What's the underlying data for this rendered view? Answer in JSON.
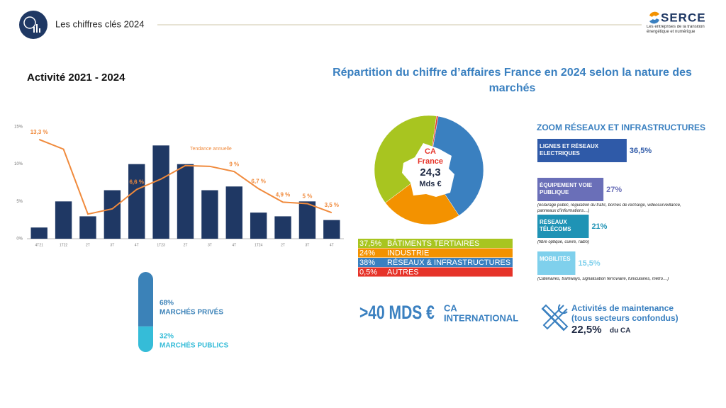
{
  "header": {
    "title": "Les chiffres clés 2024",
    "logo": "SERCE",
    "logo_subtitle": "Les entreprises de la transition énergétique et numérique"
  },
  "chart_data": [
    {
      "type": "bar",
      "title": "Activité 2021 - 2024",
      "categories": [
        "4T21",
        "1T22",
        "2T",
        "3T",
        "4T",
        "1T23",
        "2T",
        "3T",
        "4T",
        "1T24",
        "2T",
        "3T",
        "4T"
      ],
      "values": [
        1.5,
        5,
        3,
        6.5,
        10,
        12.5,
        10,
        6.5,
        7,
        3.5,
        3,
        5,
        2.5
      ],
      "color": "#1f3864",
      "line": {
        "name": "Tendance annuelle",
        "color": "#f08a3c",
        "values": [
          13.3,
          12,
          3.3,
          4,
          6.6,
          8,
          9.8,
          9.7,
          9,
          6.7,
          4.9,
          4.7,
          3.5
        ],
        "value_labels": [
          "13,3 %",
          null,
          null,
          null,
          "6,6 %",
          null,
          null,
          null,
          "9 %",
          "6,7 %",
          "4,9 %",
          "5 %",
          "3,5 %"
        ]
      },
      "ylim": [
        0,
        15
      ],
      "yticks": [
        {
          "value": 0,
          "label": "0%"
        },
        {
          "value": 5,
          "label": "5%"
        },
        {
          "value": 10,
          "label": "10%"
        },
        {
          "value": 15,
          "label": "15%"
        }
      ],
      "grid": false
    },
    {
      "type": "pie",
      "title": "Répartition du chiffre d’affaires France en 2024 selon la nature des marchés",
      "center_label": [
        "CA",
        "France",
        "24,3",
        "Mds €"
      ],
      "categories": [
        "BÂTIMENTS TERTIAIRES",
        "INDUSTRIE",
        "RÉSEAUX & INFRASTRUCTURES",
        "AUTRES"
      ],
      "values": [
        37.5,
        24,
        38,
        0.5
      ],
      "value_labels": [
        "37,5%",
        "24%",
        "38%",
        "0,5%"
      ],
      "colors": [
        "#a8c520",
        "#f39200",
        "#3a80c0",
        "#e63329"
      ]
    },
    {
      "type": "bar",
      "orientation": "horizontal",
      "title": "ZOOM RÉSEAUX ET  INFRASTRUCTURES",
      "categories": [
        "LIGNES ET RÉSEAUX ELECTRIQUES",
        "ÉQUIPEMENT VOIE PUBLIQUE",
        "RÉSEAUX TÉLÉCOMS",
        "MOBILITÉS"
      ],
      "values": [
        36.5,
        27,
        21,
        15.5
      ],
      "value_labels": [
        "36,5%",
        "27%",
        "21%",
        "15,5%"
      ],
      "colors": [
        "#2f5aa8",
        "#6a6fb8",
        "#1f93b5",
        "#7fd0ec"
      ],
      "notes": [
        null,
        "(éclairage public, régulation du trafic, bornes de recharge, videosurveillance, panneaux d’informations…)",
        "(fibre optique, cuivre, radio)",
        "(Caténaires, tramways, signalisation ferroviaire, funiculaires, métro…)"
      ]
    },
    {
      "type": "bar",
      "stacked": true,
      "series": [
        {
          "name": "MARCHÉS PRIVÉS",
          "color": "#3b82b8",
          "values": [
            68
          ],
          "value_labels": [
            "68%"
          ]
        },
        {
          "name": "MARCHÉS PUBLICS",
          "color": "#35bcd8",
          "values": [
            32
          ],
          "value_labels": [
            "32%"
          ]
        }
      ]
    }
  ],
  "international": {
    "amount": ">40 MDS €",
    "label_1": "CA",
    "label_2": "INTERNATIONAL"
  },
  "maintenance": {
    "line_1": "Activités de maintenance",
    "line_2": "(tous secteurs confondus)",
    "share": "22,5%",
    "suffix": "du CA"
  }
}
